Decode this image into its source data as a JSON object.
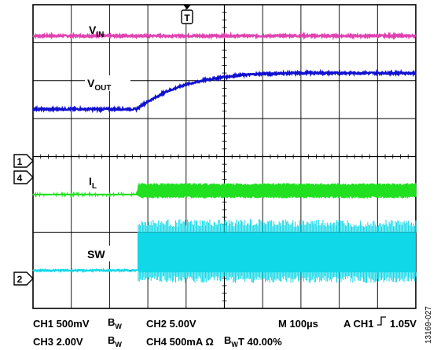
{
  "chart_data": {
    "type": "line",
    "title": "",
    "xlabel": "",
    "ylabel": "",
    "x_range_divisions": [
      0,
      10
    ],
    "y_range_divisions": [
      0,
      8
    ],
    "grid": true,
    "trigger_marker": "T",
    "colors": {
      "vin": "#e040b0",
      "vout": "#1010d0",
      "il": "#20e020",
      "sw": "#10d8e8",
      "grid": "#000000"
    },
    "trace_labels": {
      "vin": {
        "main": "V",
        "sub": "IN"
      },
      "vout": {
        "main": "V",
        "sub": "OUT"
      },
      "il": {
        "main": "I",
        "sub": "L"
      },
      "sw": {
        "main": "SW",
        "sub": ""
      }
    },
    "channel_markers": [
      "1",
      "4",
      "2"
    ],
    "series": [
      {
        "name": "VIN",
        "channel": "CH3",
        "x": [
          0,
          10
        ],
        "y": [
          7.18,
          7.18
        ]
      },
      {
        "name": "VOUT",
        "channel": "CH1",
        "x": [
          0,
          2.7,
          3.0,
          3.5,
          4.0,
          4.5,
          5.0,
          5.5,
          6.0,
          7.0,
          8.0,
          10.0
        ],
        "y": [
          5.25,
          5.25,
          5.45,
          5.72,
          5.9,
          6.02,
          6.1,
          6.15,
          6.18,
          6.2,
          6.2,
          6.2
        ]
      },
      {
        "name": "IL",
        "channel": "CH4",
        "x": [
          0,
          2.7,
          2.75,
          10
        ],
        "y_center": [
          3.0,
          3.0,
          3.1,
          3.1
        ],
        "ripple_pp": 0.4
      },
      {
        "name": "SW",
        "channel": "CH2",
        "x": [
          0,
          2.75,
          2.76,
          10
        ],
        "y_low": [
          1.0,
          1.0,
          0.95,
          0.95
        ],
        "y_high": [
          1.0,
          1.0,
          2.0,
          2.0
        ]
      }
    ]
  },
  "footer": {
    "ch1": "CH1 500mV",
    "ch1_bw": "B",
    "ch1_bw_sub": "W",
    "ch2": "CH2  5.00V",
    "timebase": "M 100µs",
    "trigger": "A  CH1",
    "trigger_slope_glyph": "⎍",
    "trigger_level": "1.05V",
    "ch3": "CH3 2.00V",
    "ch3_bw": "B",
    "ch3_bw_sub": "W",
    "ch4": "CH4  500mA Ω",
    "ch4_bw": "B",
    "ch4_bw_sub": "W",
    "trigger_pos": "T  40.00%"
  },
  "figure_id": "13169-027"
}
